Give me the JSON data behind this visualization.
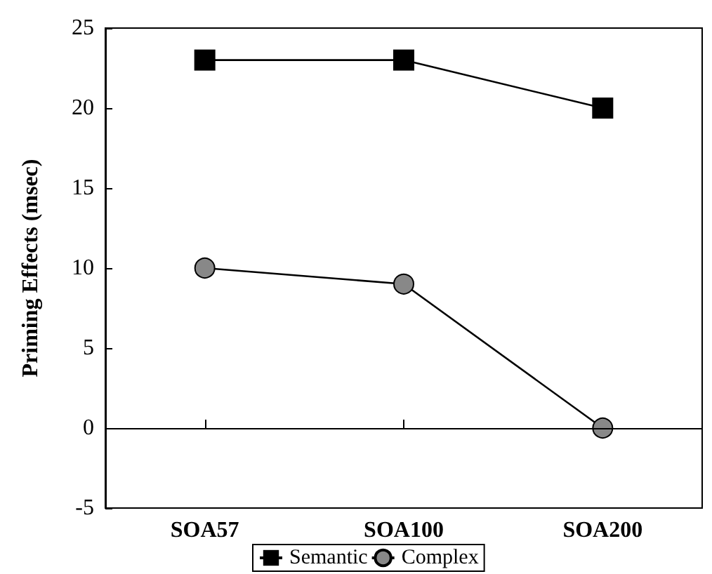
{
  "chart_data": {
    "type": "line",
    "ylabel": "Priming Effects (msec)",
    "categories": [
      "SOA57",
      "SOA100",
      "SOA200"
    ],
    "series": [
      {
        "name": "Semantic",
        "color": "#000000",
        "marker": "square",
        "values": [
          23,
          23,
          20
        ]
      },
      {
        "name": "Complex",
        "color": "#888888",
        "marker": "circle",
        "values": [
          10,
          9,
          0
        ]
      }
    ],
    "ylim": [
      -5,
      25
    ],
    "yticks": [
      -5,
      0,
      5,
      10,
      15,
      20,
      25
    ],
    "ref_lines": [
      {
        "axis": "y",
        "value": 0,
        "color": "#000000",
        "line_style": "solid"
      }
    ],
    "grid": false,
    "legend": "bottom",
    "line_style": "solid"
  }
}
